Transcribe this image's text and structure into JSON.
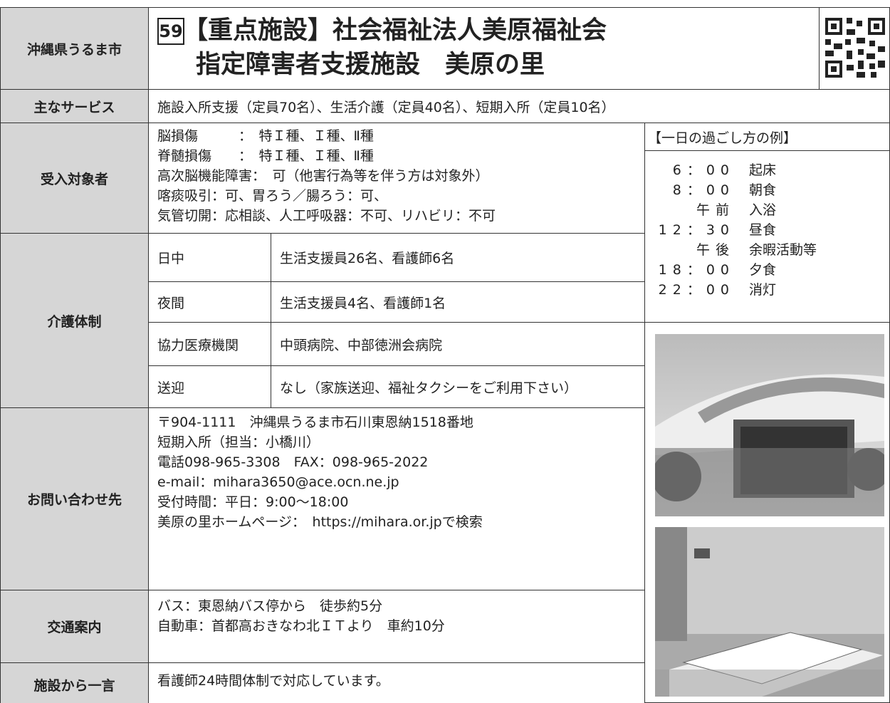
{
  "header": {
    "location": "沖縄県うるま市",
    "number": "59",
    "title_lines": [
      "【重点施設】社会福祉法人美原福祉会",
      "指定障害者支援施設　美原の里"
    ]
  },
  "services": {
    "label": "主なサービス",
    "text": "施設入所支援（定員70名）、生活介護（定員40名）、短期入所（定員10名）"
  },
  "eligibility": {
    "label": "受入対象者",
    "lines": [
      "脳損傷　　　：　特Ｉ種、Ｉ種、Ⅱ種",
      "脊髄損傷　　：　特Ｉ種、Ｉ種、Ⅱ種",
      "高次脳機能障害：　可（他害行為等を伴う方は対象外）",
      "喀痰吸引：可、胃ろう／腸ろう：可、",
      "気管切開：応相談、人工呼吸器：不可、リハビリ：不可"
    ]
  },
  "schedule": {
    "title": "【一日の過ごし方の例】",
    "items": [
      {
        "time": "6：00",
        "activity": "起床"
      },
      {
        "time": "8：00",
        "activity": "朝食"
      },
      {
        "time": "午前",
        "activity": "入浴"
      },
      {
        "time": "12：30",
        "activity": "昼食"
      },
      {
        "time": "午後",
        "activity": "余暇活動等"
      },
      {
        "time": "18：00",
        "activity": "夕食"
      },
      {
        "time": "22：00",
        "activity": "消灯"
      }
    ]
  },
  "care": {
    "label": "介護体制",
    "rows": [
      {
        "label": "日中",
        "text": "生活支援員26名、看護師6名"
      },
      {
        "label": "夜間",
        "text": "生活支援員4名、看護師1名"
      },
      {
        "label": "協力医療機関",
        "text": "中頭病院、中部徳洲会病院"
      },
      {
        "label": "送迎",
        "text": "なし（家族送迎、福祉タクシーをご利用下さい）"
      }
    ]
  },
  "contact": {
    "label": "お問い合わせ先",
    "lines": [
      "〒904-1111　沖縄県うるま市石川東恩納1518番地",
      "短期入所（担当：小橋川）",
      "電話098-965-3308　FAX：098-965-2022",
      "e-mail：mihara3650@ace.ocn.ne.jp",
      "受付時間：平日：9:00～18:00",
      "美原の里ホームページ：　https://mihara.or.jpで検索"
    ]
  },
  "access": {
    "label": "交通案内",
    "lines": [
      "バス：東恩納バス停から　徒歩約5分",
      "自動車：首都高おきなわ北ＩＴより　車約10分"
    ]
  },
  "message": {
    "label": "施設から一言",
    "text": "看護師24時間体制で対応しています。"
  }
}
